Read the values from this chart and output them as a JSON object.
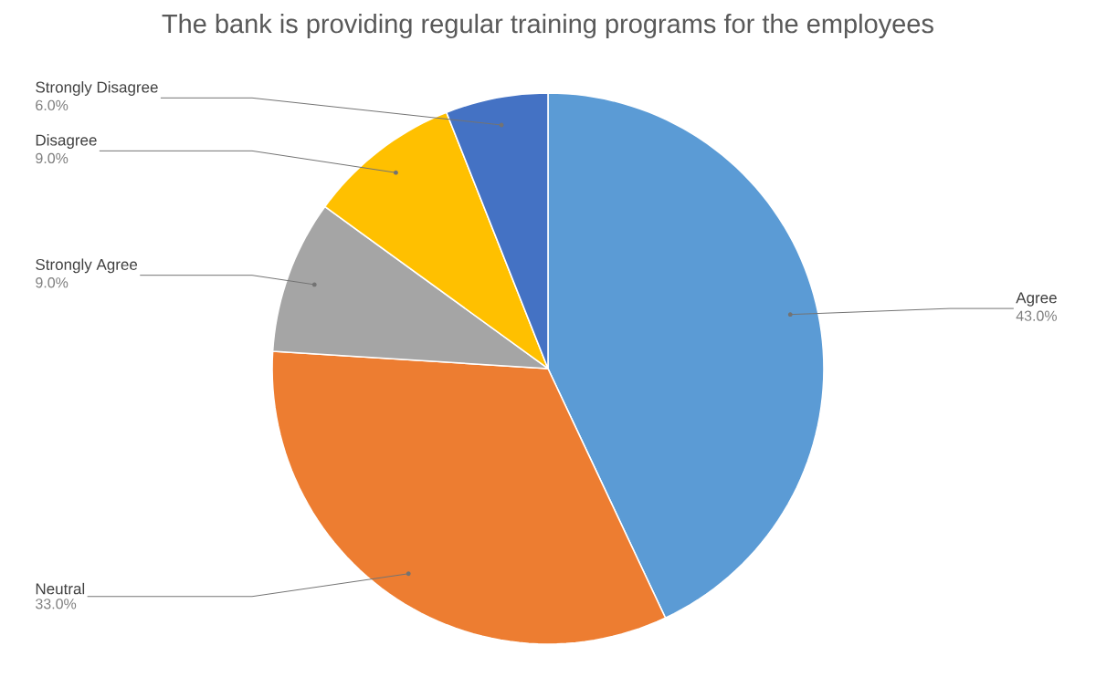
{
  "chart_data": {
    "type": "pie",
    "title": "The bank is providing regular training programs for the employees",
    "categories": [
      "Agree",
      "Neutral",
      "Strongly Agree",
      "Disagree",
      "Strongly Disagree"
    ],
    "values": [
      43,
      33,
      9,
      9,
      6
    ],
    "colors": [
      "#5b9bd5",
      "#ed7d31",
      "#a5a5a5",
      "#ffc000",
      "#4472c4"
    ],
    "value_labels": [
      "43.0%",
      "33.0%",
      "9.0%",
      "9.0%",
      "6.0%"
    ]
  }
}
